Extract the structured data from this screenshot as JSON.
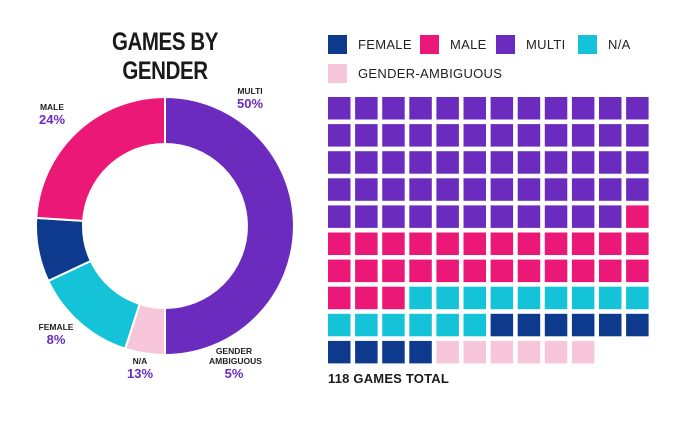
{
  "title": "GAMES BY GENDER",
  "total_label": "118 GAMES TOTAL",
  "colors": {
    "female": "#0d3a8c",
    "male": "#ec1877",
    "multi": "#6c2bbf",
    "na": "#14c3d8",
    "gender_ambiguous": "#f8c6da",
    "pct_text": "#6c2bbf"
  },
  "legend": [
    {
      "key": "female",
      "label": "FEMALE"
    },
    {
      "key": "male",
      "label": "MALE"
    },
    {
      "key": "multi",
      "label": "MULTI"
    },
    {
      "key": "na",
      "label": "N/A"
    },
    {
      "key": "gender_ambiguous",
      "label": "GENDER-AMBIGUOUS"
    }
  ],
  "chart_data": [
    {
      "type": "pie",
      "title": "GAMES BY GENDER",
      "categories": [
        "MULTI",
        "GENDER AMBIGUOUS",
        "N/A",
        "FEMALE",
        "MALE"
      ],
      "values": [
        50,
        5,
        13,
        8,
        24
      ],
      "labels": [
        "50%",
        "5%",
        "13%",
        "8%",
        "24%"
      ],
      "colors": [
        "#6c2bbf",
        "#f8c6da",
        "#14c3d8",
        "#0d3a8c",
        "#ec1877"
      ],
      "style": "donut"
    },
    {
      "type": "waffle",
      "unit": "games",
      "total": 118,
      "categories": [
        "MULTI",
        "MALE",
        "N/A",
        "FEMALE",
        "GENDER-AMBIGUOUS"
      ],
      "values": [
        59,
        28,
        15,
        10,
        6
      ],
      "colors": [
        "#6c2bbf",
        "#ec1877",
        "#14c3d8",
        "#0d3a8c",
        "#f8c6da"
      ]
    }
  ],
  "donut_labels": [
    {
      "key": "multi",
      "name": "MULTI",
      "pct": "50%"
    },
    {
      "key": "male",
      "name": "MALE",
      "pct": "24%"
    },
    {
      "key": "female",
      "name": "FEMALE",
      "pct": "8%"
    },
    {
      "key": "na",
      "name": "N/A",
      "pct": "13%"
    },
    {
      "key": "gender_ambiguous",
      "name": "GENDER AMBIGUOUS",
      "pct": "5%"
    }
  ]
}
